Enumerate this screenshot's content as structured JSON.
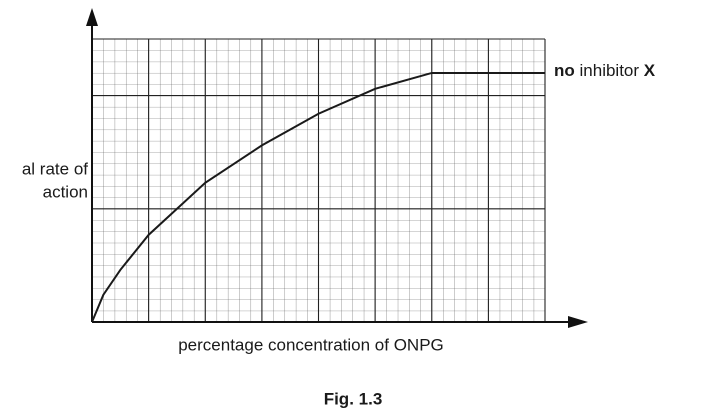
{
  "chart_data": {
    "type": "line",
    "y_label_lines": [
      "al rate of",
      "action"
    ],
    "x_label": "percentage concentration of ONPG",
    "caption": "Fig. 1.3",
    "x": [
      0,
      1,
      2.5,
      5,
      10,
      15,
      20,
      25,
      30,
      40
    ],
    "series": [
      {
        "color": "#1a1a1a",
        "values": [
          0,
          2.4,
          4.6,
          7.7,
          12.3,
          15.6,
          18.4,
          20.6,
          22,
          22
        ]
      }
    ],
    "line_label": [
      {
        "text": "no",
        "bold": true
      },
      {
        "text": " inhibitor ",
        "bold": false
      },
      {
        "text": "X",
        "bold": true
      }
    ],
    "xlim": [
      0,
      40
    ],
    "ylim": [
      0,
      25
    ],
    "grid": true
  }
}
